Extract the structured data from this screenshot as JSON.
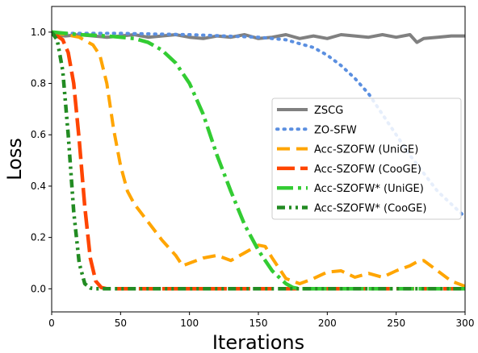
{
  "chart_data": {
    "type": "line",
    "title": "",
    "xlabel": "Iterations",
    "ylabel": "Loss",
    "xlim": [
      0,
      300
    ],
    "ylim": [
      -0.09,
      1.1
    ],
    "xticks": [
      "0",
      "50",
      "100",
      "150",
      "200",
      "250",
      "300"
    ],
    "yticks": [
      "0.0",
      "0.2",
      "0.4",
      "0.6",
      "0.8",
      "1.0"
    ],
    "grid": false,
    "legend_position": "center-right",
    "series": [
      {
        "name": "ZSCG",
        "color": "#808080",
        "dash": "solid",
        "x": [
          0,
          10,
          20,
          30,
          40,
          50,
          60,
          70,
          80,
          90,
          100,
          110,
          120,
          130,
          140,
          150,
          160,
          170,
          180,
          190,
          200,
          210,
          220,
          230,
          240,
          250,
          260,
          265,
          270,
          280,
          290,
          300
        ],
        "y": [
          0.99,
          0.985,
          0.99,
          0.985,
          0.98,
          0.985,
          0.99,
          0.98,
          0.985,
          0.99,
          0.98,
          0.975,
          0.985,
          0.98,
          0.99,
          0.975,
          0.98,
          0.99,
          0.975,
          0.985,
          0.975,
          0.99,
          0.985,
          0.98,
          0.99,
          0.98,
          0.99,
          0.96,
          0.975,
          0.98,
          0.985,
          0.985
        ]
      },
      {
        "name": "ZO-SFW",
        "color": "#5b8fe0",
        "dash": "dotted",
        "x": [
          0,
          50,
          100,
          150,
          170,
          190,
          200,
          210,
          220,
          230,
          240,
          250,
          260,
          270,
          280,
          290,
          300
        ],
        "y": [
          0.995,
          0.995,
          0.99,
          0.98,
          0.97,
          0.94,
          0.91,
          0.87,
          0.82,
          0.76,
          0.68,
          0.6,
          0.52,
          0.45,
          0.38,
          0.33,
          0.28
        ]
      },
      {
        "name": "Acc-SZOFW (UniGE)",
        "color": "#ffa500",
        "dash": "dashed",
        "x": [
          0,
          10,
          20,
          30,
          35,
          40,
          45,
          50,
          55,
          60,
          70,
          80,
          90,
          95,
          100,
          110,
          120,
          130,
          140,
          150,
          155,
          160,
          170,
          180,
          190,
          200,
          210,
          220,
          230,
          240,
          250,
          260,
          265,
          270,
          280,
          290,
          300
        ],
        "y": [
          1.0,
          0.99,
          0.98,
          0.95,
          0.91,
          0.8,
          0.62,
          0.48,
          0.38,
          0.33,
          0.26,
          0.19,
          0.13,
          0.09,
          0.1,
          0.12,
          0.13,
          0.11,
          0.14,
          0.17,
          0.165,
          0.12,
          0.04,
          0.02,
          0.04,
          0.065,
          0.07,
          0.045,
          0.06,
          0.045,
          0.07,
          0.09,
          0.105,
          0.11,
          0.07,
          0.03,
          0.01
        ]
      },
      {
        "name": "Acc-SZOFW (CooGE)",
        "color": "#ff4500",
        "dash": "long-dashed",
        "x": [
          0,
          8,
          12,
          16,
          20,
          24,
          28,
          32,
          36,
          40,
          60,
          100,
          150,
          200,
          250,
          300
        ],
        "y": [
          1.0,
          0.97,
          0.92,
          0.8,
          0.58,
          0.32,
          0.12,
          0.03,
          0.005,
          0.0,
          0.0,
          0.0,
          0.0,
          0.0,
          0.0,
          0.0
        ]
      },
      {
        "name": "Acc-SZOFW* (UniGE)",
        "color": "#33cc33",
        "dash": "dash-dot",
        "x": [
          0,
          20,
          40,
          60,
          70,
          80,
          90,
          100,
          110,
          120,
          130,
          140,
          150,
          160,
          170,
          175,
          180,
          190,
          200,
          250,
          300
        ],
        "y": [
          1.0,
          0.99,
          0.985,
          0.975,
          0.96,
          0.93,
          0.88,
          0.8,
          0.68,
          0.52,
          0.38,
          0.25,
          0.15,
          0.07,
          0.02,
          0.005,
          0.0,
          0.0,
          0.0,
          0.0,
          0.0
        ]
      },
      {
        "name": "Acc-SZOFW* (CooGE)",
        "color": "#228b22",
        "dash": "dash-dot-dot",
        "x": [
          0,
          4,
          8,
          12,
          16,
          20,
          24,
          28,
          32,
          40,
          60,
          100,
          150,
          200,
          250,
          300
        ],
        "y": [
          1.0,
          0.97,
          0.85,
          0.6,
          0.3,
          0.1,
          0.02,
          0.003,
          0.0,
          0.0,
          0.0,
          0.0,
          0.0,
          0.0,
          0.0,
          0.0
        ]
      }
    ]
  }
}
